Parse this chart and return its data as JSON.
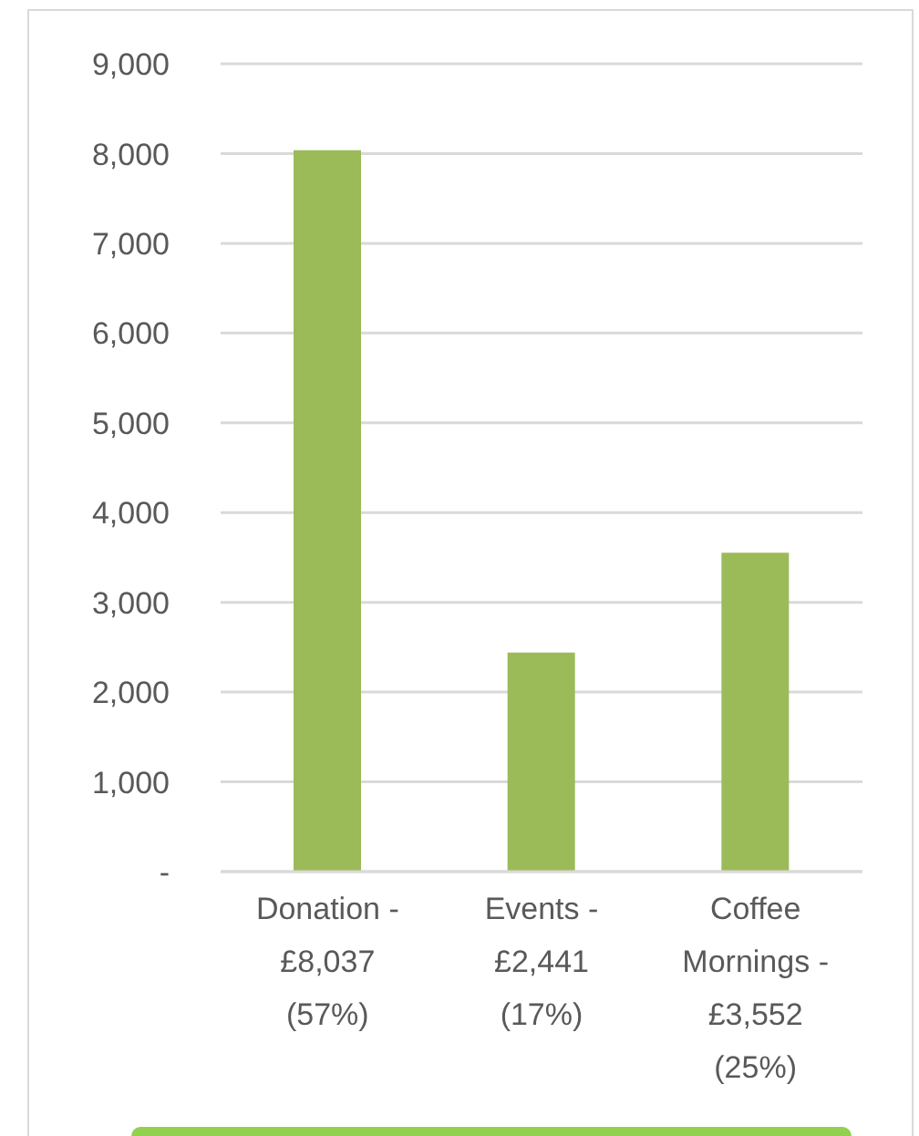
{
  "chart_data": {
    "type": "bar",
    "categories": [
      "Donation - £8,037 (57%)",
      "Events - £2,441 (17%)",
      "Coffee Mornings - £3,552 (25%)"
    ],
    "values": [
      8037,
      2441,
      3552
    ],
    "color": "#9bbb59",
    "ylim": [
      0,
      9000
    ],
    "yticks": [
      {
        "value": 0,
        "label": "-"
      },
      {
        "value": 1000,
        "label": "1,000"
      },
      {
        "value": 2000,
        "label": "2,000"
      },
      {
        "value": 3000,
        "label": "3,000"
      },
      {
        "value": 4000,
        "label": "4,000"
      },
      {
        "value": 5000,
        "label": "5,000"
      },
      {
        "value": 6000,
        "label": "6,000"
      },
      {
        "value": 7000,
        "label": "7,000"
      },
      {
        "value": 8000,
        "label": "8,000"
      },
      {
        "value": 9000,
        "label": "9,000"
      }
    ],
    "grid": "y"
  }
}
